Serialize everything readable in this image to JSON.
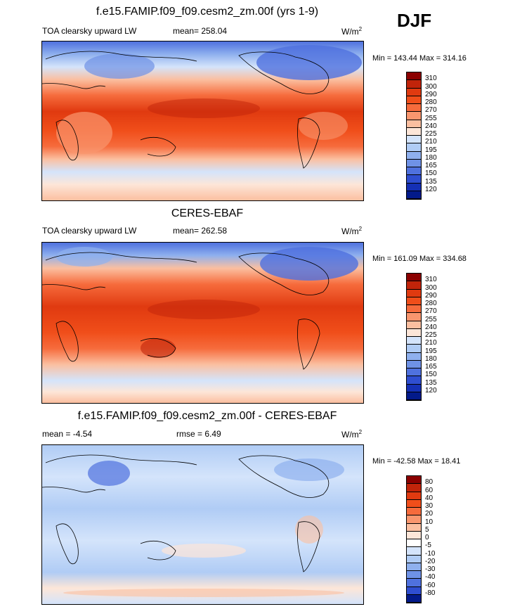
{
  "season": "DJF",
  "panels": [
    {
      "title": "f.e15.FAMIP.f09_f09.cesm2_zm.00f (yrs 1-9)",
      "left_label": "TOA clearsky upward LW",
      "center_label": "mean= 258.04",
      "units_base": "W/m",
      "units_sup": "2",
      "minmax": "Min = 143.44 Max = 314.16",
      "levels": [
        "310",
        "300",
        "290",
        "280",
        "270",
        "255",
        "240",
        "225",
        "210",
        "195",
        "180",
        "165",
        "150",
        "135",
        "120"
      ],
      "colors": [
        "#8b0000",
        "#c1240a",
        "#e03a10",
        "#f04e1a",
        "#f66b3c",
        "#f9966e",
        "#fbbfa0",
        "#fde6d8",
        "#d4e4fb",
        "#b0ccf5",
        "#8fb0ee",
        "#6f92e6",
        "#4f71de",
        "#2f4ed0",
        "#1530b5",
        "#031a8a"
      ]
    },
    {
      "title": "CERES-EBAF",
      "left_label": "TOA clearsky upward LW",
      "center_label": "mean= 262.58",
      "units_base": "W/m",
      "units_sup": "2",
      "minmax": "Min = 161.09 Max = 334.68",
      "levels": [
        "310",
        "300",
        "290",
        "280",
        "270",
        "255",
        "240",
        "225",
        "210",
        "195",
        "180",
        "165",
        "150",
        "135",
        "120"
      ],
      "colors": [
        "#8b0000",
        "#c1240a",
        "#e03a10",
        "#f04e1a",
        "#f66b3c",
        "#f9966e",
        "#fbbfa0",
        "#fde6d8",
        "#d4e4fb",
        "#b0ccf5",
        "#8fb0ee",
        "#6f92e6",
        "#4f71de",
        "#2f4ed0",
        "#1530b5",
        "#031a8a"
      ]
    },
    {
      "title": "f.e15.FAMIP.f09_f09.cesm2_zm.00f - CERES-EBAF",
      "left_label": "mean =  -4.54",
      "center_label": "rmse =   6.49",
      "units_base": "W/m",
      "units_sup": "2",
      "minmax": "Min = -42.58 Max =  18.41",
      "levels": [
        "80",
        "60",
        "40",
        "30",
        "20",
        "10",
        "5",
        "0",
        "-5",
        "-10",
        "-20",
        "-30",
        "-40",
        "-60",
        "-80"
      ],
      "colors": [
        "#8b0000",
        "#c1240a",
        "#e03a10",
        "#f04e1a",
        "#f66b3c",
        "#f9966e",
        "#fbbfa0",
        "#fde6d8",
        "#ffffff",
        "#d4e4fb",
        "#b0ccf5",
        "#8fb0ee",
        "#6f92e6",
        "#4f71de",
        "#2f4ed0",
        "#031a8a"
      ]
    }
  ]
}
